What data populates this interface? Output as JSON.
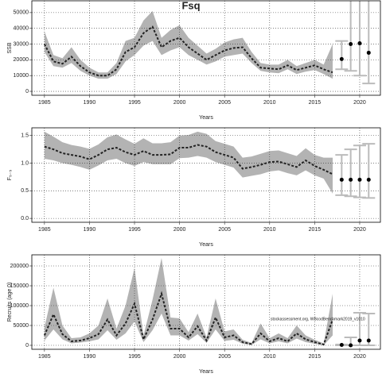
{
  "title": "Fsq",
  "chart_data": [
    {
      "type": "line",
      "ylabel": "SSB",
      "xlabel": "Years",
      "xlim": [
        1983.6,
        2022.3
      ],
      "xticks": [
        1985,
        1990,
        1995,
        2000,
        2005,
        2010,
        2015,
        2020
      ],
      "ylim": [
        -2500,
        57500
      ],
      "yticks": [
        0,
        10000,
        20000,
        30000,
        40000,
        50000
      ],
      "grid": true,
      "line_color": "#222222",
      "band_color": "#b3b3b3",
      "forecast_color": "#bbbbbb",
      "x": [
        1985,
        1986,
        1987,
        1988,
        1989,
        1990,
        1991,
        1992,
        1993,
        1994,
        1995,
        1996,
        1997,
        1998,
        1999,
        2000,
        2001,
        2002,
        2003,
        2004,
        2005,
        2006,
        2007,
        2008,
        2009,
        2010,
        2011,
        2012,
        2013,
        2014,
        2015,
        2016,
        2017
      ],
      "values": [
        30000,
        19000,
        17500,
        22000,
        16000,
        12000,
        10000,
        10000,
        14000,
        25000,
        28000,
        37000,
        41000,
        28000,
        32000,
        34000,
        28000,
        24000,
        20000,
        23000,
        26000,
        27500,
        28000,
        21000,
        15000,
        14500,
        14000,
        16500,
        13500,
        15000,
        16500,
        14000,
        12000
      ],
      "lower": [
        25000,
        16000,
        15000,
        18000,
        13000,
        10000,
        8000,
        8000,
        11000,
        19000,
        23000,
        29000,
        32000,
        23000,
        26000,
        28000,
        23000,
        20000,
        17000,
        19000,
        22000,
        23000,
        24000,
        18000,
        13000,
        12000,
        11500,
        14000,
        11000,
        12500,
        13500,
        11000,
        8000
      ],
      "upper": [
        38000,
        23000,
        21000,
        28000,
        20000,
        15000,
        12000,
        12000,
        18000,
        32000,
        34000,
        45000,
        51000,
        34000,
        39000,
        42000,
        34000,
        29000,
        24000,
        27000,
        31000,
        33000,
        34000,
        25000,
        18000,
        17000,
        17000,
        20000,
        16000,
        18000,
        20000,
        17000,
        30000
      ],
      "forecast": {
        "x": [
          2018,
          2019,
          2020,
          2021
        ],
        "values": [
          20500,
          30000,
          30500,
          24500
        ],
        "lower": [
          14000,
          13000,
          10000,
          5000
        ],
        "upper": [
          32000,
          60000,
          60000,
          60000
        ]
      }
    },
    {
      "type": "line",
      "ylabel": "F₅₋₅",
      "xlabel": "Years",
      "xlim": [
        1983.6,
        2022.3
      ],
      "xticks": [
        1985,
        1990,
        1995,
        2000,
        2005,
        2010,
        2015,
        2020
      ],
      "ylim": [
        -0.07,
        1.64
      ],
      "yticks": [
        {
          "value": 0,
          "label": "0.0"
        },
        {
          "value": 0.5,
          "label": "0.5"
        },
        {
          "value": 1,
          "label": "1.0"
        },
        {
          "value": 1.5,
          "label": "1.5"
        }
      ],
      "grid": true,
      "line_color": "#222222",
      "band_color": "#b3b3b3",
      "forecast_color": "#bbbbbb",
      "x": [
        1985,
        1986,
        1987,
        1988,
        1989,
        1990,
        1991,
        1992,
        1993,
        1994,
        1995,
        1996,
        1997,
        1998,
        1999,
        2000,
        2001,
        2002,
        2003,
        2004,
        2005,
        2006,
        2007,
        2008,
        2009,
        2010,
        2011,
        2012,
        2013,
        2014,
        2015,
        2016,
        2017
      ],
      "values": [
        1.3,
        1.25,
        1.18,
        1.15,
        1.12,
        1.07,
        1.15,
        1.25,
        1.28,
        1.2,
        1.15,
        1.22,
        1.15,
        1.15,
        1.16,
        1.28,
        1.28,
        1.33,
        1.3,
        1.2,
        1.15,
        1.1,
        0.9,
        0.93,
        0.97,
        1.02,
        1.03,
        0.98,
        0.93,
        1.05,
        0.95,
        0.88,
        0.8
      ],
      "lower": [
        1.08,
        1.05,
        1.0,
        0.97,
        0.93,
        0.88,
        0.96,
        1.05,
        1.08,
        1.0,
        0.95,
        1.02,
        0.98,
        0.98,
        0.98,
        1.09,
        1.1,
        1.13,
        1.1,
        1.02,
        0.97,
        0.92,
        0.74,
        0.77,
        0.8,
        0.85,
        0.87,
        0.82,
        0.78,
        0.87,
        0.78,
        0.72,
        0.45
      ],
      "upper": [
        1.57,
        1.48,
        1.38,
        1.33,
        1.3,
        1.26,
        1.34,
        1.47,
        1.52,
        1.43,
        1.35,
        1.45,
        1.36,
        1.36,
        1.38,
        1.5,
        1.51,
        1.57,
        1.53,
        1.4,
        1.35,
        1.3,
        1.1,
        1.12,
        1.17,
        1.22,
        1.23,
        1.18,
        1.13,
        1.27,
        1.15,
        1.1,
        1.1
      ],
      "forecast": {
        "x": [
          2018,
          2019,
          2020,
          2021
        ],
        "values": [
          0.7,
          0.7,
          0.7,
          0.7
        ],
        "lower": [
          0.42,
          0.4,
          0.38,
          0.37
        ],
        "upper": [
          1.15,
          1.25,
          1.32,
          1.35
        ]
      }
    },
    {
      "type": "line",
      "ylabel": "Recruits (age 0)",
      "xlabel": "Years",
      "annotation": "stockassessment.org, WBcodBenchmark2019_v1010",
      "xlim": [
        1983.6,
        2022.3
      ],
      "xticks": [
        1985,
        1990,
        1995,
        2000,
        2005,
        2010,
        2015,
        2020
      ],
      "ylim": [
        -10000,
        228000
      ],
      "yticks": [
        0,
        50000,
        100000,
        150000,
        200000
      ],
      "grid": true,
      "line_color": "#222222",
      "band_color": "#b3b3b3",
      "forecast_color": "#bbbbbb",
      "x": [
        1985,
        1986,
        1987,
        1988,
        1989,
        1990,
        1991,
        1992,
        1993,
        1994,
        1995,
        1996,
        1997,
        1998,
        1999,
        2000,
        2001,
        2002,
        2003,
        2004,
        2005,
        2006,
        2007,
        2008,
        2009,
        2010,
        2011,
        2012,
        2013,
        2014,
        2015,
        2016,
        2017
      ],
      "values": [
        25000,
        78000,
        28000,
        10000,
        12000,
        18000,
        28000,
        65000,
        25000,
        55000,
        105000,
        15000,
        65000,
        130000,
        42000,
        42000,
        20000,
        48000,
        12000,
        70000,
        20000,
        25000,
        8000,
        3000,
        30000,
        10000,
        18000,
        10000,
        30000,
        15000,
        8000,
        2000,
        65000
      ],
      "lower": [
        12000,
        40000,
        15000,
        5000,
        7000,
        10000,
        15000,
        38000,
        14000,
        30000,
        60000,
        8000,
        38000,
        80000,
        25000,
        25000,
        12000,
        28000,
        6000,
        40000,
        11000,
        14000,
        4000,
        1000,
        15000,
        5000,
        10000,
        5000,
        17000,
        8000,
        4000,
        0,
        25000
      ],
      "upper": [
        45000,
        145000,
        50000,
        18000,
        20000,
        30000,
        50000,
        118000,
        42000,
        100000,
        195000,
        25000,
        115000,
        220000,
        70000,
        68000,
        33000,
        80000,
        20000,
        118000,
        35000,
        40000,
        14000,
        6000,
        55000,
        18000,
        30000,
        18000,
        50000,
        25000,
        14000,
        5000,
        130000
      ],
      "forecast": {
        "x": [
          2018,
          2019,
          2020,
          2021
        ],
        "values": [
          1000,
          0,
          12000,
          12000
        ],
        "lower": [
          0,
          0,
          0,
          0
        ],
        "upper": [
          2000,
          20000,
          82000,
          80000
        ]
      }
    }
  ]
}
